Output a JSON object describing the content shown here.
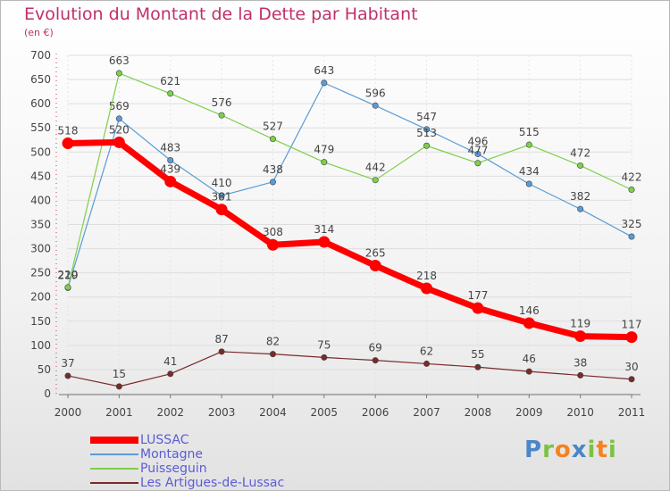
{
  "header": {
    "title": "Evolution du Montant de la Dette par Habitant",
    "unit": "(en €)"
  },
  "logo": {
    "text": "Proxiti",
    "letters": [
      "P",
      "r",
      "o",
      "x",
      "i",
      "t",
      "i"
    ],
    "colors": [
      "#4a86c8",
      "#7cc242",
      "#f58220",
      "#4a86c8",
      "#7cc242",
      "#f58220",
      "#7cc242"
    ]
  },
  "chart_data": {
    "type": "line",
    "title": "Evolution du Montant de la Dette par Habitant",
    "ylabel": "(en €)",
    "xlabel": "",
    "x": [
      "2000",
      "2001",
      "2002",
      "2003",
      "2004",
      "2005",
      "2006",
      "2007",
      "2008",
      "2009",
      "2010",
      "2011"
    ],
    "ylim": [
      0,
      700
    ],
    "yticks": [
      0,
      50,
      100,
      150,
      200,
      250,
      300,
      350,
      400,
      450,
      500,
      550,
      600,
      650,
      700
    ],
    "grid": true,
    "legend_position": "bottom-left",
    "series": [
      {
        "name": "LUSSAC",
        "color": "#ff0000",
        "emphasis": true,
        "values": [
          518,
          520,
          439,
          381,
          308,
          314,
          265,
          218,
          177,
          146,
          119,
          117
        ]
      },
      {
        "name": "Montagne",
        "color": "#5b9bd5",
        "values": [
          219,
          569,
          483,
          410,
          438,
          643,
          596,
          547,
          496,
          434,
          382,
          325
        ]
      },
      {
        "name": "Puisseguin",
        "color": "#7cd04a",
        "values": [
          220,
          663,
          621,
          576,
          527,
          479,
          442,
          513,
          477,
          515,
          472,
          422
        ]
      },
      {
        "name": "Les Artigues-de-Lussac",
        "color": "#7a2a2a",
        "values": [
          37,
          15,
          41,
          87,
          82,
          75,
          69,
          62,
          55,
          46,
          38,
          30
        ]
      }
    ]
  }
}
